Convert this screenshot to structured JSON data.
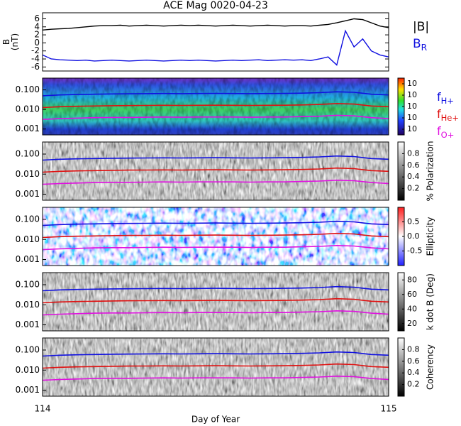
{
  "title": "ACE Mag 0020-04-23",
  "x_label": "Day of Year",
  "chart_data": [
    {
      "type": "line",
      "y_label": [
        "B",
        "(nT)"
      ],
      "xlim": [
        114,
        115
      ],
      "xticks": [
        114,
        115
      ],
      "ylim": [
        -7,
        7.5
      ],
      "yticks": [
        -6,
        -4,
        -2,
        0,
        2,
        4,
        6
      ],
      "x": [
        114,
        114.025,
        114.05,
        114.075,
        114.1,
        114.125,
        114.15,
        114.175,
        114.2,
        114.225,
        114.25,
        114.275,
        114.3,
        114.325,
        114.35,
        114.375,
        114.4,
        114.425,
        114.45,
        114.475,
        114.5,
        114.525,
        114.55,
        114.575,
        114.6,
        114.625,
        114.65,
        114.675,
        114.7,
        114.725,
        114.75,
        114.775,
        114.8,
        114.825,
        114.85,
        114.875,
        114.9,
        114.925,
        114.95,
        114.975,
        115
      ],
      "series": [
        {
          "name": "|B|",
          "color": "#000000",
          "values": [
            3.2,
            3.4,
            3.5,
            3.6,
            3.8,
            4.0,
            4.2,
            4.3,
            4.3,
            4.4,
            4.2,
            4.3,
            4.4,
            4.3,
            4.2,
            4.3,
            4.4,
            4.3,
            4.4,
            4.3,
            4.2,
            4.3,
            4.4,
            4.3,
            4.2,
            4.3,
            4.4,
            4.3,
            4.2,
            4.3,
            4.3,
            4.2,
            4.4,
            4.6,
            5.0,
            5.5,
            6.0,
            5.8,
            5.0,
            4.2,
            3.8
          ]
        },
        {
          "name": "B",
          "subscript": "R",
          "color": "#1010e0",
          "values": [
            -3.0,
            -4.0,
            -4.2,
            -4.3,
            -4.4,
            -4.3,
            -4.5,
            -4.4,
            -4.3,
            -4.4,
            -4.5,
            -4.4,
            -4.3,
            -4.4,
            -4.5,
            -4.4,
            -4.3,
            -4.4,
            -4.3,
            -4.4,
            -4.5,
            -4.4,
            -4.3,
            -4.4,
            -4.3,
            -4.2,
            -4.4,
            -4.3,
            -4.2,
            -4.3,
            -4.2,
            -4.4,
            -4.0,
            -3.5,
            -5.5,
            3.0,
            -1.0,
            1.0,
            -2.0,
            -3.0,
            -3.5
          ]
        }
      ]
    },
    {
      "type": "spectrogram",
      "colormap": "rainbow",
      "cb_label": "",
      "cblim": [
        0,
        1
      ],
      "cbticks": [
        {
          "value": 0.1,
          "label": "10"
        },
        {
          "value": 0.3,
          "label": "10"
        },
        {
          "value": 0.5,
          "label": "10"
        },
        {
          "value": 0.7,
          "label": "10"
        },
        {
          "value": 0.9,
          "label": "10"
        }
      ],
      "legend": [
        {
          "name": "f",
          "subscript": "H+",
          "color": "#1010e0"
        },
        {
          "name": "f",
          "subscript": "He+",
          "color": "#e01010"
        },
        {
          "name": "f",
          "subscript": "O+",
          "color": "#e010e0"
        }
      ]
    },
    {
      "type": "spectrogram",
      "colormap": "gray",
      "cb_label": "% Polarization",
      "cblim": [
        0,
        1
      ],
      "cbticks": [
        0.2,
        0.4,
        0.6,
        0.8
      ]
    },
    {
      "type": "spectrogram",
      "colormap": "bwr",
      "cb_label": "Ellipticity",
      "cblim": [
        -1,
        1
      ],
      "cbticks": [
        -0.5,
        {
          "value": 0,
          "label": "0.0"
        },
        0.5
      ]
    },
    {
      "type": "spectrogram",
      "colormap": "gray",
      "cb_label": "k dot B (Deg)",
      "cblim": [
        10,
        90
      ],
      "cbticks": [
        20,
        40,
        60,
        80
      ]
    },
    {
      "type": "spectrogram",
      "colormap": "gray",
      "cb_label": "Coherency",
      "cblim": [
        0,
        1
      ],
      "cbticks": [
        0.2,
        0.4,
        0.6,
        0.8
      ]
    }
  ],
  "gyro": {
    "xlim": [
      114,
      115
    ],
    "ylim": [
      0.0005,
      0.4
    ],
    "log_y": true,
    "yticks": [
      0.001,
      {
        "value": 0.01,
        "label": "0.010"
      },
      {
        "value": 0.1,
        "label": "0.100"
      }
    ],
    "x": [
      114,
      114.05,
      114.1,
      114.15,
      114.2,
      114.25,
      114.3,
      114.35,
      114.4,
      114.45,
      114.5,
      114.55,
      114.6,
      114.65,
      114.7,
      114.75,
      114.8,
      114.85,
      114.9,
      114.95,
      115
    ],
    "series": [
      {
        "color": "#1010e0",
        "values": [
          0.05,
          0.055,
          0.058,
          0.06,
          0.062,
          0.063,
          0.064,
          0.065,
          0.064,
          0.065,
          0.066,
          0.065,
          0.064,
          0.065,
          0.066,
          0.068,
          0.072,
          0.08,
          0.075,
          0.06,
          0.055
        ]
      },
      {
        "color": "#e01010",
        "values": [
          0.0125,
          0.0138,
          0.0145,
          0.015,
          0.0155,
          0.0158,
          0.016,
          0.0163,
          0.016,
          0.0163,
          0.0165,
          0.0163,
          0.016,
          0.0163,
          0.0165,
          0.017,
          0.018,
          0.02,
          0.0188,
          0.015,
          0.0138
        ]
      },
      {
        "color": "#e010e0",
        "values": [
          0.0031,
          0.0034,
          0.0036,
          0.0038,
          0.0039,
          0.0039,
          0.004,
          0.0041,
          0.004,
          0.0041,
          0.0041,
          0.0041,
          0.004,
          0.0041,
          0.0041,
          0.0043,
          0.0045,
          0.005,
          0.0047,
          0.0038,
          0.0034
        ]
      }
    ]
  }
}
